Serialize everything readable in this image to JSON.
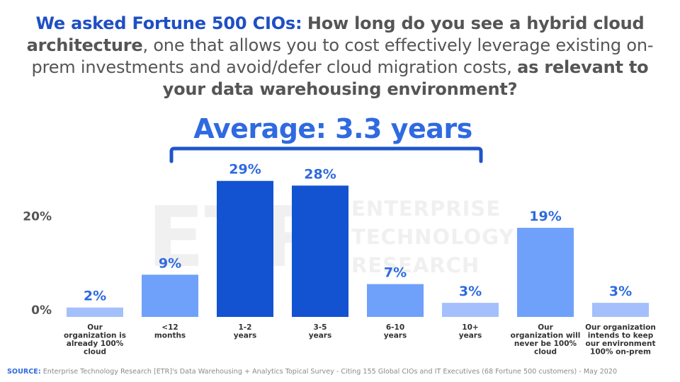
{
  "title": {
    "part1": "We asked Fortune 500 CIOs:",
    "part2": "How long do you see a hybrid cloud architecture",
    "part3": ", one that allows you to cost effectively leverage existing on-prem investments and avoid/defer cloud migration costs,",
    "part4": "as relevant to your data warehousing environment?"
  },
  "average_label": "Average: 3.3 years",
  "watermark": {
    "logo": "ETR",
    "line1": "ENTERPRISE",
    "line2": "TECHNOLOGY",
    "line3": "RESEARCH"
  },
  "source": {
    "label": "SOURCE:",
    "text": "Enterprise Technology Research [ETR]'s Data Warehousing + Analytics Topical Survey - Citing 155 Global CIOs and IT Executives (68 Fortune 500 customers) - May 2020"
  },
  "colors": {
    "light": "#a3c0fc",
    "medium": "#6fa1fa",
    "dark": "#1352d1",
    "label": "#2f6ae0",
    "brace": "#1f55c8"
  },
  "chart_data": {
    "type": "bar",
    "categories": [
      "Our organization is already 100% cloud",
      "<12 months",
      "1-2 years",
      "3-5 years",
      "6-10 years",
      "10+ years",
      "Our organization will never be 100% cloud",
      "Our organization intends to keep our environment 100% on-prem"
    ],
    "category_lines": [
      [
        "Our",
        "organization is",
        "already 100%",
        "cloud"
      ],
      [
        "<12",
        "months"
      ],
      [
        "1-2",
        "years"
      ],
      [
        "3-5",
        "years"
      ],
      [
        "6-10",
        "years"
      ],
      [
        "10+",
        "years"
      ],
      [
        "Our",
        "organization will",
        "never be 100%",
        "cloud"
      ],
      [
        "Our organization",
        "intends to keep",
        "our environment",
        "100% on-prem"
      ]
    ],
    "values": [
      2,
      9,
      29,
      28,
      7,
      3,
      19,
      3
    ],
    "value_labels": [
      "2%",
      "9%",
      "29%",
      "28%",
      "7%",
      "3%",
      "19%",
      "3%"
    ],
    "bar_colors": [
      "light",
      "medium",
      "dark",
      "dark",
      "medium",
      "light",
      "medium",
      "light"
    ],
    "y_ticks": [
      0,
      20
    ],
    "y_tick_labels": [
      "0%",
      "20%"
    ],
    "ylim": [
      0,
      30
    ],
    "xlabel": "",
    "ylabel": "",
    "grid": false,
    "annotation": "Average: 3.3 years"
  }
}
